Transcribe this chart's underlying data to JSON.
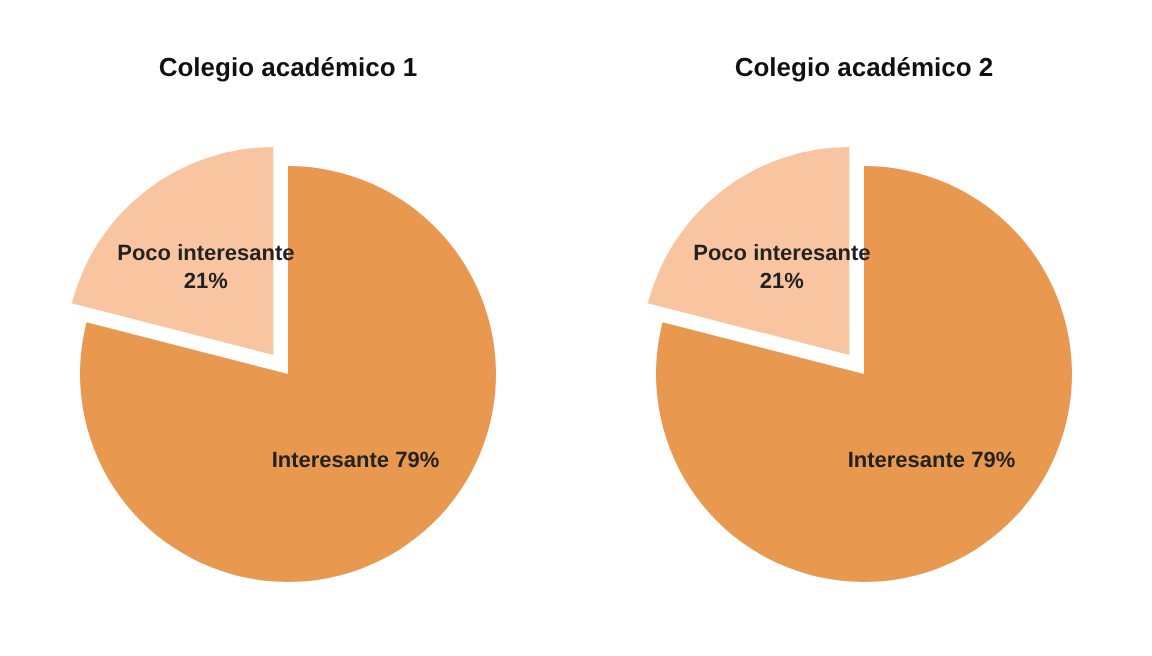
{
  "chart_data": [
    {
      "type": "pie",
      "title": "Colegio académico 1",
      "categories": [
        "Interesante",
        "Poco interesante"
      ],
      "values": [
        79,
        21
      ],
      "colors": [
        "#e8994f",
        "#f9c5a1"
      ],
      "value_labels": [
        "79%",
        "21%"
      ]
    },
    {
      "type": "pie",
      "title": "Colegio académico 2",
      "categories": [
        "Interesante",
        "Poco interesante"
      ],
      "values": [
        79,
        21
      ],
      "colors": [
        "#e8994f",
        "#f9c5a1"
      ],
      "value_labels": [
        "79%",
        "21%"
      ]
    }
  ]
}
